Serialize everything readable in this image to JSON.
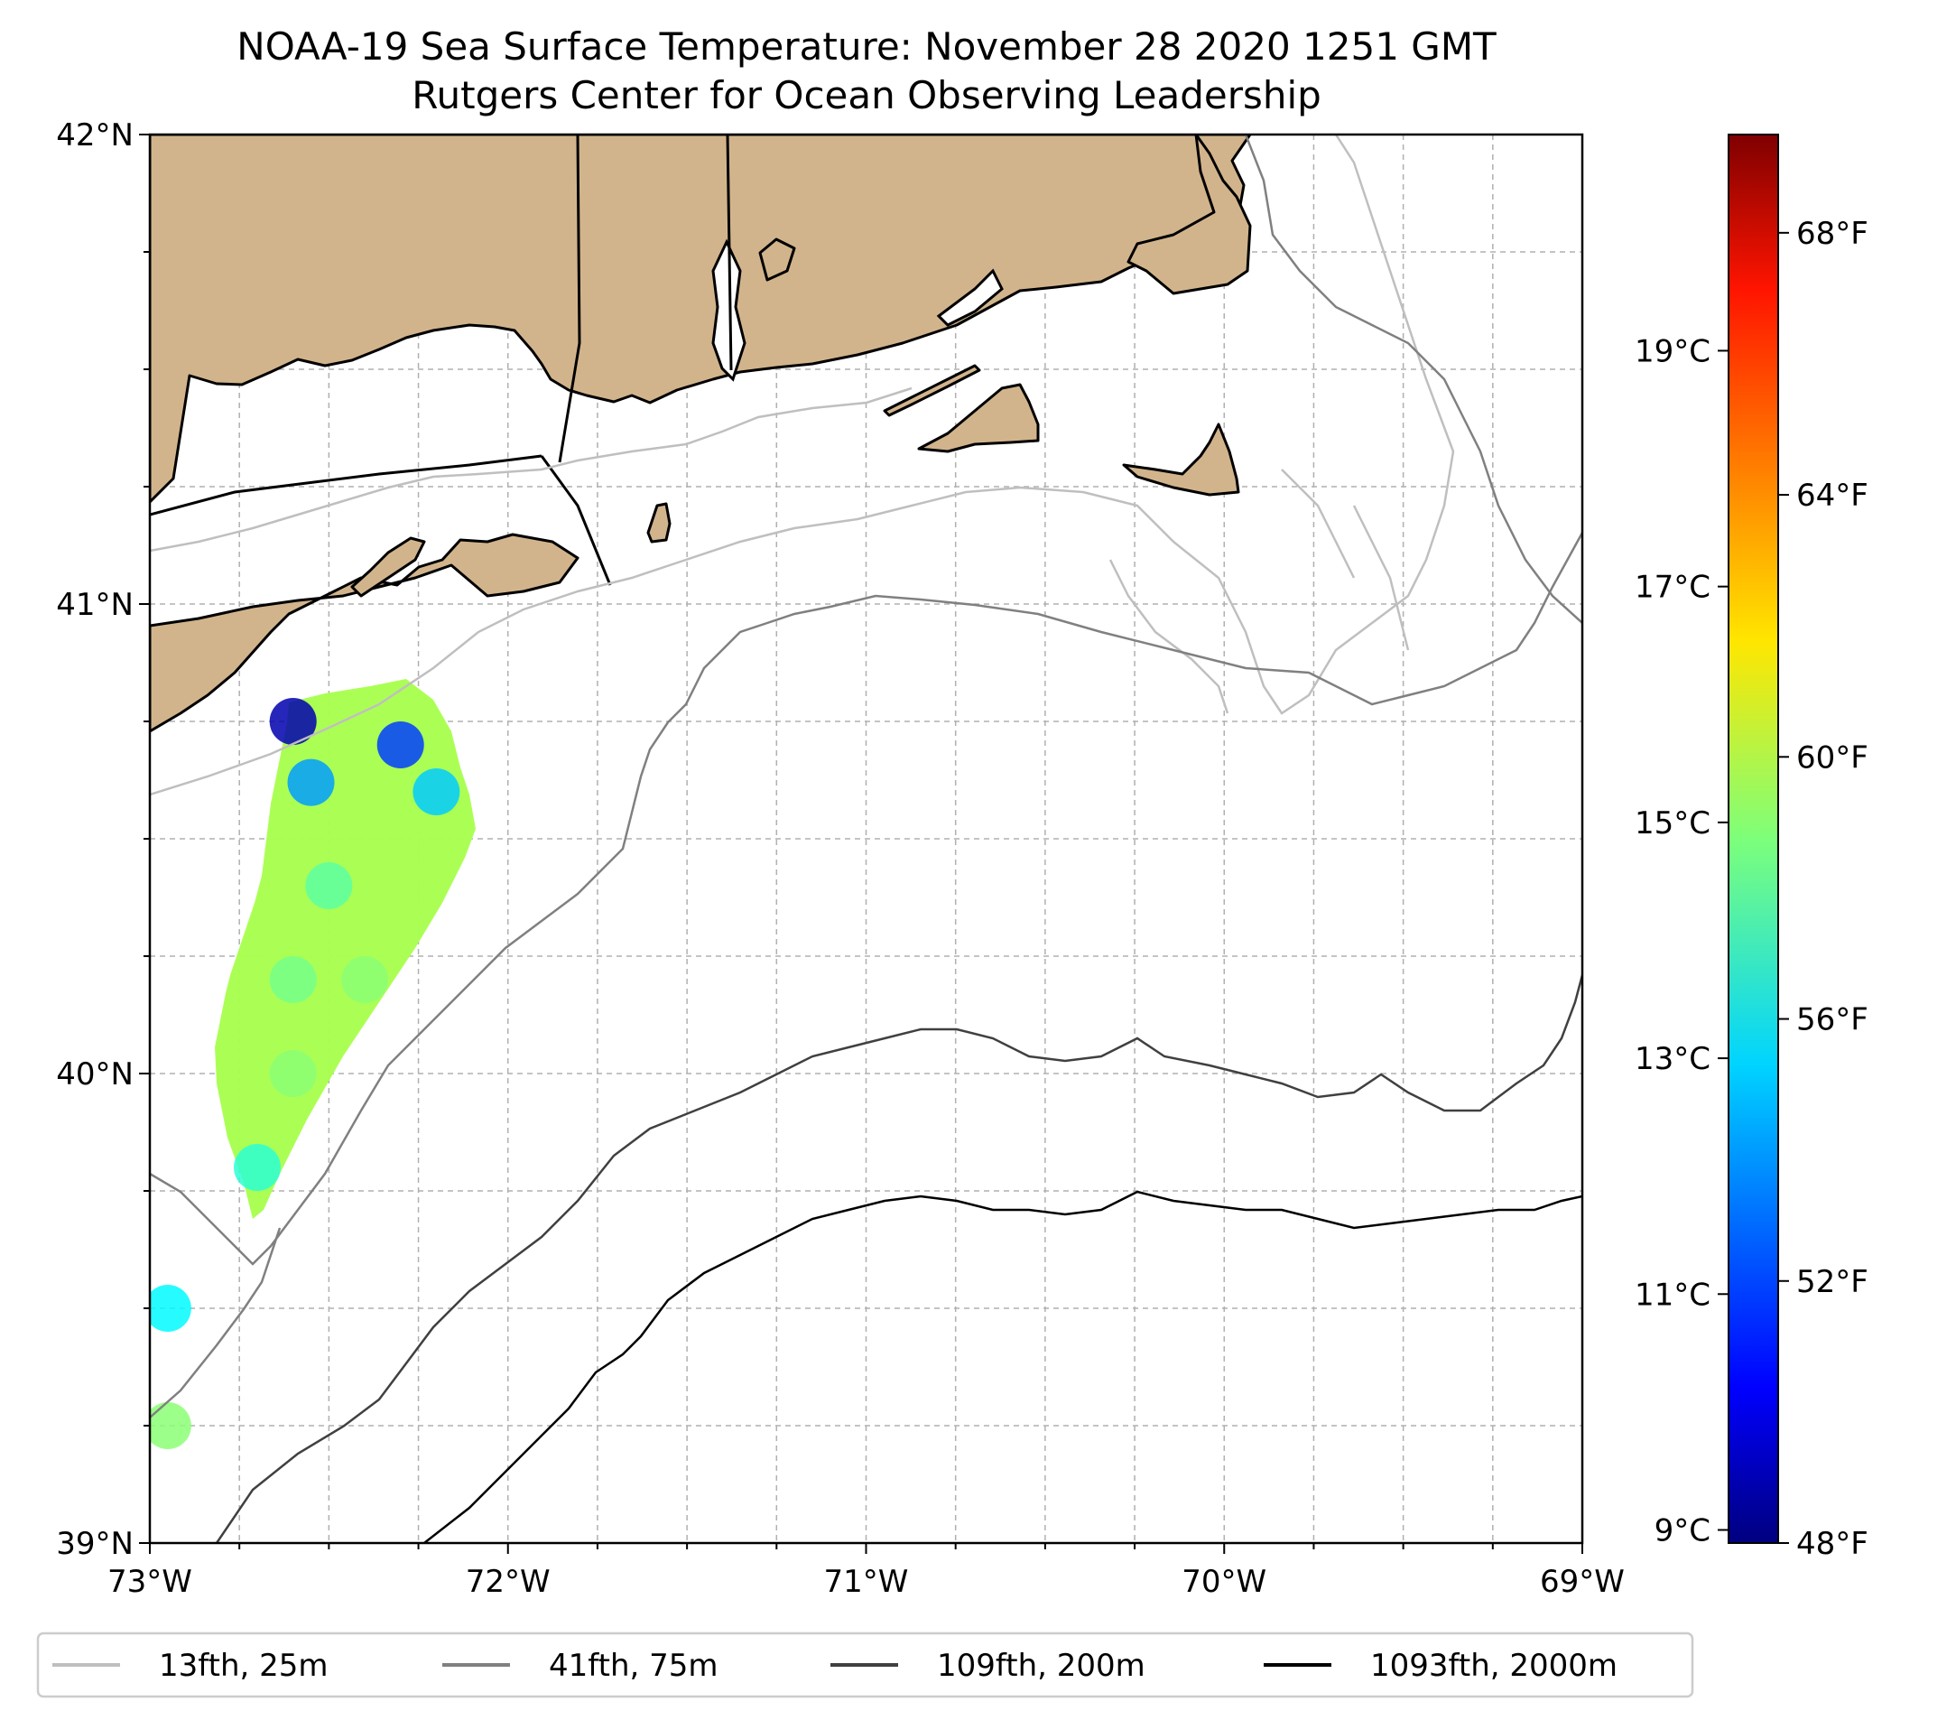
{
  "title": {
    "line1": "NOAA-19 Sea Surface Temperature: November 28 2020 1251 GMT",
    "line2": "Rutgers Center for Ocean Observing Leadership"
  },
  "map": {
    "lon_range": [
      -73,
      -69
    ],
    "lat_range": [
      39,
      42
    ],
    "lon_ticks": [
      {
        "value": -73,
        "label": "73°W"
      },
      {
        "value": -72,
        "label": "72°W"
      },
      {
        "value": -71,
        "label": "71°W"
      },
      {
        "value": -70,
        "label": "70°W"
      },
      {
        "value": -69,
        "label": "69°W"
      }
    ],
    "lat_ticks": [
      {
        "value": 42,
        "label": "42°N"
      },
      {
        "value": 41,
        "label": "41°N"
      },
      {
        "value": 40,
        "label": "40°N"
      },
      {
        "value": 39,
        "label": "39°N"
      }
    ],
    "gridlines": "dashed every 0.25°",
    "land_color": "#d2b48c",
    "regions": [
      "Long Island",
      "Connecticut",
      "Rhode Island",
      "Massachusetts",
      "Cape Cod",
      "Martha's Vineyard",
      "Nantucket",
      "Block Island"
    ]
  },
  "colorbar": {
    "colormap": "jet",
    "range_fahrenheit": [
      48,
      69.5
    ],
    "fahrenheit_ticks": [
      {
        "value": 68,
        "label": "68°F"
      },
      {
        "value": 64,
        "label": "64°F"
      },
      {
        "value": 60,
        "label": "60°F"
      },
      {
        "value": 56,
        "label": "56°F"
      },
      {
        "value": 52,
        "label": "52°F"
      },
      {
        "value": 48,
        "label": "48°F"
      }
    ],
    "celsius_ticks": [
      {
        "value": 19,
        "label": "19°C"
      },
      {
        "value": 17,
        "label": "17°C"
      },
      {
        "value": 15,
        "label": "15°C"
      },
      {
        "value": 13,
        "label": "13°C"
      },
      {
        "value": 11,
        "label": "11°C"
      },
      {
        "value": 9,
        "label": "9°C"
      }
    ]
  },
  "legend": {
    "placement": "bottom",
    "items": [
      {
        "label": "13fth, 25m",
        "color": "#bfbfbf"
      },
      {
        "label": "41fth, 75m",
        "color": "#808080"
      },
      {
        "label": "109fth, 200m",
        "color": "#404040"
      },
      {
        "label": "1093fth, 2000m",
        "color": "#000000"
      }
    ]
  },
  "chart_data": {
    "type": "heatmap",
    "title": "NOAA-19 Sea Surface Temperature: November 28 2020 1251 GMT",
    "subtitle": "Rutgers Center for Ocean Observing Leadership",
    "x_range": [
      -73,
      -69
    ],
    "y_range": [
      39,
      42
    ],
    "units": "°F",
    "value_range": [
      48,
      69.5
    ],
    "sst_swath_points": [
      {
        "lon": -72.6,
        "lat": 40.75,
        "value": 49
      },
      {
        "lon": -72.3,
        "lat": 40.7,
        "value": 52
      },
      {
        "lon": -72.55,
        "lat": 40.62,
        "value": 54
      },
      {
        "lon": -72.2,
        "lat": 40.6,
        "value": 55
      },
      {
        "lon": -72.5,
        "lat": 40.4,
        "value": 58
      },
      {
        "lon": -72.6,
        "lat": 40.2,
        "value": 58.5
      },
      {
        "lon": -72.4,
        "lat": 40.2,
        "value": 59
      },
      {
        "lon": -72.6,
        "lat": 40.0,
        "value": 59
      },
      {
        "lon": -72.7,
        "lat": 39.8,
        "value": 57
      },
      {
        "lon": -72.95,
        "lat": 39.5,
        "value": 56
      },
      {
        "lon": -72.95,
        "lat": 39.25,
        "value": 59
      }
    ]
  }
}
